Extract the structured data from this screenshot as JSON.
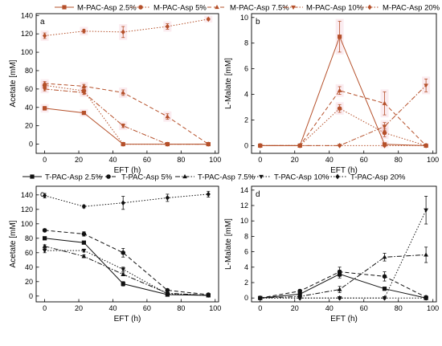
{
  "chart_data": [
    {
      "type": "line",
      "panel": "a",
      "ylabel": "Acetate [mM]",
      "xlabel": "EFT (h)",
      "xlim": [
        -5,
        102
      ],
      "ylim": [
        -10,
        142
      ],
      "xticks": [
        0,
        20,
        40,
        60,
        80,
        100
      ],
      "yticks": [
        0,
        20,
        40,
        60,
        80,
        100,
        120,
        140
      ],
      "color": "#b5502a",
      "legend": "top",
      "series": [
        {
          "name": "M-PAC-Asp 2.5%",
          "x": [
            0,
            23,
            46,
            72,
            96
          ],
          "y": [
            39,
            34,
            0,
            0,
            0
          ],
          "err": [
            2,
            1.5,
            0,
            0,
            0
          ],
          "marker": "square",
          "dash": "solid"
        },
        {
          "name": "M-PAC-Asp 5%",
          "x": [
            0,
            23,
            46,
            72,
            96
          ],
          "y": [
            64,
            58,
            0,
            0,
            0
          ],
          "err": [
            2,
            2,
            0,
            0,
            0
          ],
          "marker": "circle",
          "dash": "dot"
        },
        {
          "name": "M-PAC-Asp 7.5%",
          "x": [
            0,
            23,
            46,
            72,
            96
          ],
          "y": [
            66,
            63,
            56,
            30,
            0
          ],
          "err": [
            2,
            2,
            3,
            3,
            0
          ],
          "marker": "triangle-up",
          "dash": "dash"
        },
        {
          "name": "M-PAC-Asp 10%",
          "x": [
            0,
            23,
            46,
            72,
            96
          ],
          "y": [
            60,
            56,
            20,
            0,
            0
          ],
          "err": [
            2,
            2,
            2,
            0,
            0
          ],
          "marker": "triangle-down",
          "dash": "dashdot"
        },
        {
          "name": "M-PAC-Asp 20%",
          "x": [
            0,
            23,
            46,
            72,
            96
          ],
          "y": [
            118,
            123,
            122,
            128,
            136
          ],
          "err": [
            3,
            2,
            6,
            3,
            1
          ],
          "marker": "diamond",
          "dash": "dot"
        }
      ]
    },
    {
      "type": "line",
      "panel": "b",
      "ylabel": "L-Malate [mM]",
      "xlabel": "EFT (h)",
      "xlim": [
        -5,
        102
      ],
      "ylim": [
        -0.6,
        10.3
      ],
      "xticks": [
        0,
        20,
        40,
        60,
        80,
        100
      ],
      "yticks": [
        0,
        2,
        4,
        6,
        8,
        10
      ],
      "color": "#b5502a",
      "series": [
        {
          "name": "M-PAC-Asp 2.5%",
          "x": [
            0,
            23,
            46,
            72,
            96
          ],
          "y": [
            0,
            0,
            8.5,
            0.1,
            0
          ],
          "err": [
            0,
            0,
            1.2,
            0.1,
            0
          ],
          "marker": "square",
          "dash": "solid"
        },
        {
          "name": "M-PAC-Asp 5%",
          "x": [
            0,
            23,
            46,
            72,
            96
          ],
          "y": [
            0,
            0,
            2.9,
            1.0,
            0
          ],
          "err": [
            0,
            0,
            0.3,
            0.3,
            0
          ],
          "marker": "circle",
          "dash": "dot"
        },
        {
          "name": "M-PAC-Asp 7.5%",
          "x": [
            0,
            23,
            46,
            72,
            96
          ],
          "y": [
            0,
            0,
            4.3,
            3.3,
            0
          ],
          "err": [
            0,
            0,
            0.3,
            0.9,
            0
          ],
          "marker": "triangle-up",
          "dash": "dash"
        },
        {
          "name": "M-PAC-Asp 10%",
          "x": [
            0,
            23,
            46,
            72,
            96
          ],
          "y": [
            0,
            0,
            0,
            1.5,
            4.7
          ],
          "err": [
            0,
            0,
            0,
            0.3,
            0.5
          ],
          "marker": "triangle-down",
          "dash": "dashdot"
        },
        {
          "name": "M-PAC-Asp 20%",
          "x": [
            0,
            23,
            46,
            72,
            96
          ],
          "y": [
            0,
            0,
            0,
            0,
            0
          ],
          "err": [
            0,
            0,
            0,
            0,
            0
          ],
          "marker": "diamond",
          "dash": "dot"
        }
      ]
    },
    {
      "type": "line",
      "panel": "c",
      "ylabel": "Acetate [mM]",
      "xlabel": "EFT (h)",
      "xlim": [
        -5,
        102
      ],
      "ylim": [
        -8,
        152
      ],
      "xticks": [
        0,
        20,
        40,
        60,
        80,
        100
      ],
      "yticks": [
        0,
        20,
        40,
        60,
        80,
        100,
        120,
        140
      ],
      "color": "#111111",
      "legend": "top",
      "series": [
        {
          "name": "T-PAC-Asp 2.5%",
          "x": [
            0,
            23,
            46,
            72,
            96
          ],
          "y": [
            80,
            74,
            17,
            2,
            1
          ],
          "err": [
            2,
            2,
            3,
            1,
            1
          ],
          "marker": "square",
          "dash": "solid"
        },
        {
          "name": "T-PAC-Asp 5%",
          "x": [
            0,
            23,
            46,
            72,
            96
          ],
          "y": [
            91,
            86,
            60,
            8,
            2
          ],
          "err": [
            2,
            3,
            6,
            1,
            1
          ],
          "marker": "circle",
          "dash": "dash"
        },
        {
          "name": "T-PAC-Asp 7.5%",
          "x": [
            0,
            23,
            46,
            72,
            96
          ],
          "y": [
            69,
            55,
            30,
            4,
            1
          ],
          "err": [
            2,
            2,
            2,
            1,
            1
          ],
          "marker": "triangle-up",
          "dash": "dashdot"
        },
        {
          "name": "T-PAC-Asp 10%",
          "x": [
            0,
            23,
            46,
            72,
            96
          ],
          "y": [
            63,
            63,
            37,
            3,
            1
          ],
          "err": [
            3,
            2,
            3,
            1,
            1
          ],
          "marker": "triangle-down",
          "dash": "dot"
        },
        {
          "name": "T-PAC-Asp 20%",
          "x": [
            0,
            23,
            46,
            72,
            96
          ],
          "y": [
            139,
            124,
            129,
            136,
            141
          ],
          "err": [
            3,
            2,
            9,
            5,
            4
          ],
          "marker": "diamond",
          "dash": "dot"
        }
      ]
    },
    {
      "type": "line",
      "panel": "d",
      "ylabel": "L-Malate [mM]",
      "xlabel": "EFT (h)",
      "xlim": [
        -5,
        102
      ],
      "ylim": [
        -0.5,
        14.5
      ],
      "xticks": [
        0,
        20,
        40,
        60,
        80,
        100
      ],
      "yticks": [
        0,
        2,
        4,
        6,
        8,
        10,
        12,
        14
      ],
      "color": "#111111",
      "series": [
        {
          "name": "T-PAC-Asp 2.5%",
          "x": [
            0,
            23,
            46,
            72,
            96
          ],
          "y": [
            0,
            0.5,
            3.1,
            1.2,
            0
          ],
          "err": [
            0,
            0.2,
            0.5,
            0.2,
            0
          ],
          "marker": "square",
          "dash": "solid"
        },
        {
          "name": "T-PAC-Asp 5%",
          "x": [
            0,
            23,
            46,
            72,
            96
          ],
          "y": [
            0,
            0.9,
            3.4,
            2.8,
            0.1
          ],
          "err": [
            0,
            0.2,
            0.6,
            0.6,
            0.1
          ],
          "marker": "circle",
          "dash": "dash"
        },
        {
          "name": "T-PAC-Asp 7.5%",
          "x": [
            0,
            23,
            46,
            72,
            96
          ],
          "y": [
            0,
            0.2,
            1.1,
            5.3,
            5.6
          ],
          "err": [
            0,
            0.1,
            0.4,
            0.5,
            1.0
          ],
          "marker": "triangle-up",
          "dash": "dashdot"
        },
        {
          "name": "T-PAC-Asp 10%",
          "x": [
            0,
            23,
            46,
            72,
            96
          ],
          "y": [
            0,
            0,
            0,
            0,
            11.4
          ],
          "err": [
            0,
            0,
            0,
            0,
            1.8
          ],
          "marker": "triangle-down",
          "dash": "dot"
        },
        {
          "name": "T-PAC-Asp 20%",
          "x": [
            0,
            23,
            46,
            72,
            96
          ],
          "y": [
            0,
            0,
            0,
            0,
            0
          ],
          "err": [
            0,
            0,
            0,
            0,
            0
          ],
          "marker": "diamond",
          "dash": "dot"
        }
      ]
    }
  ]
}
